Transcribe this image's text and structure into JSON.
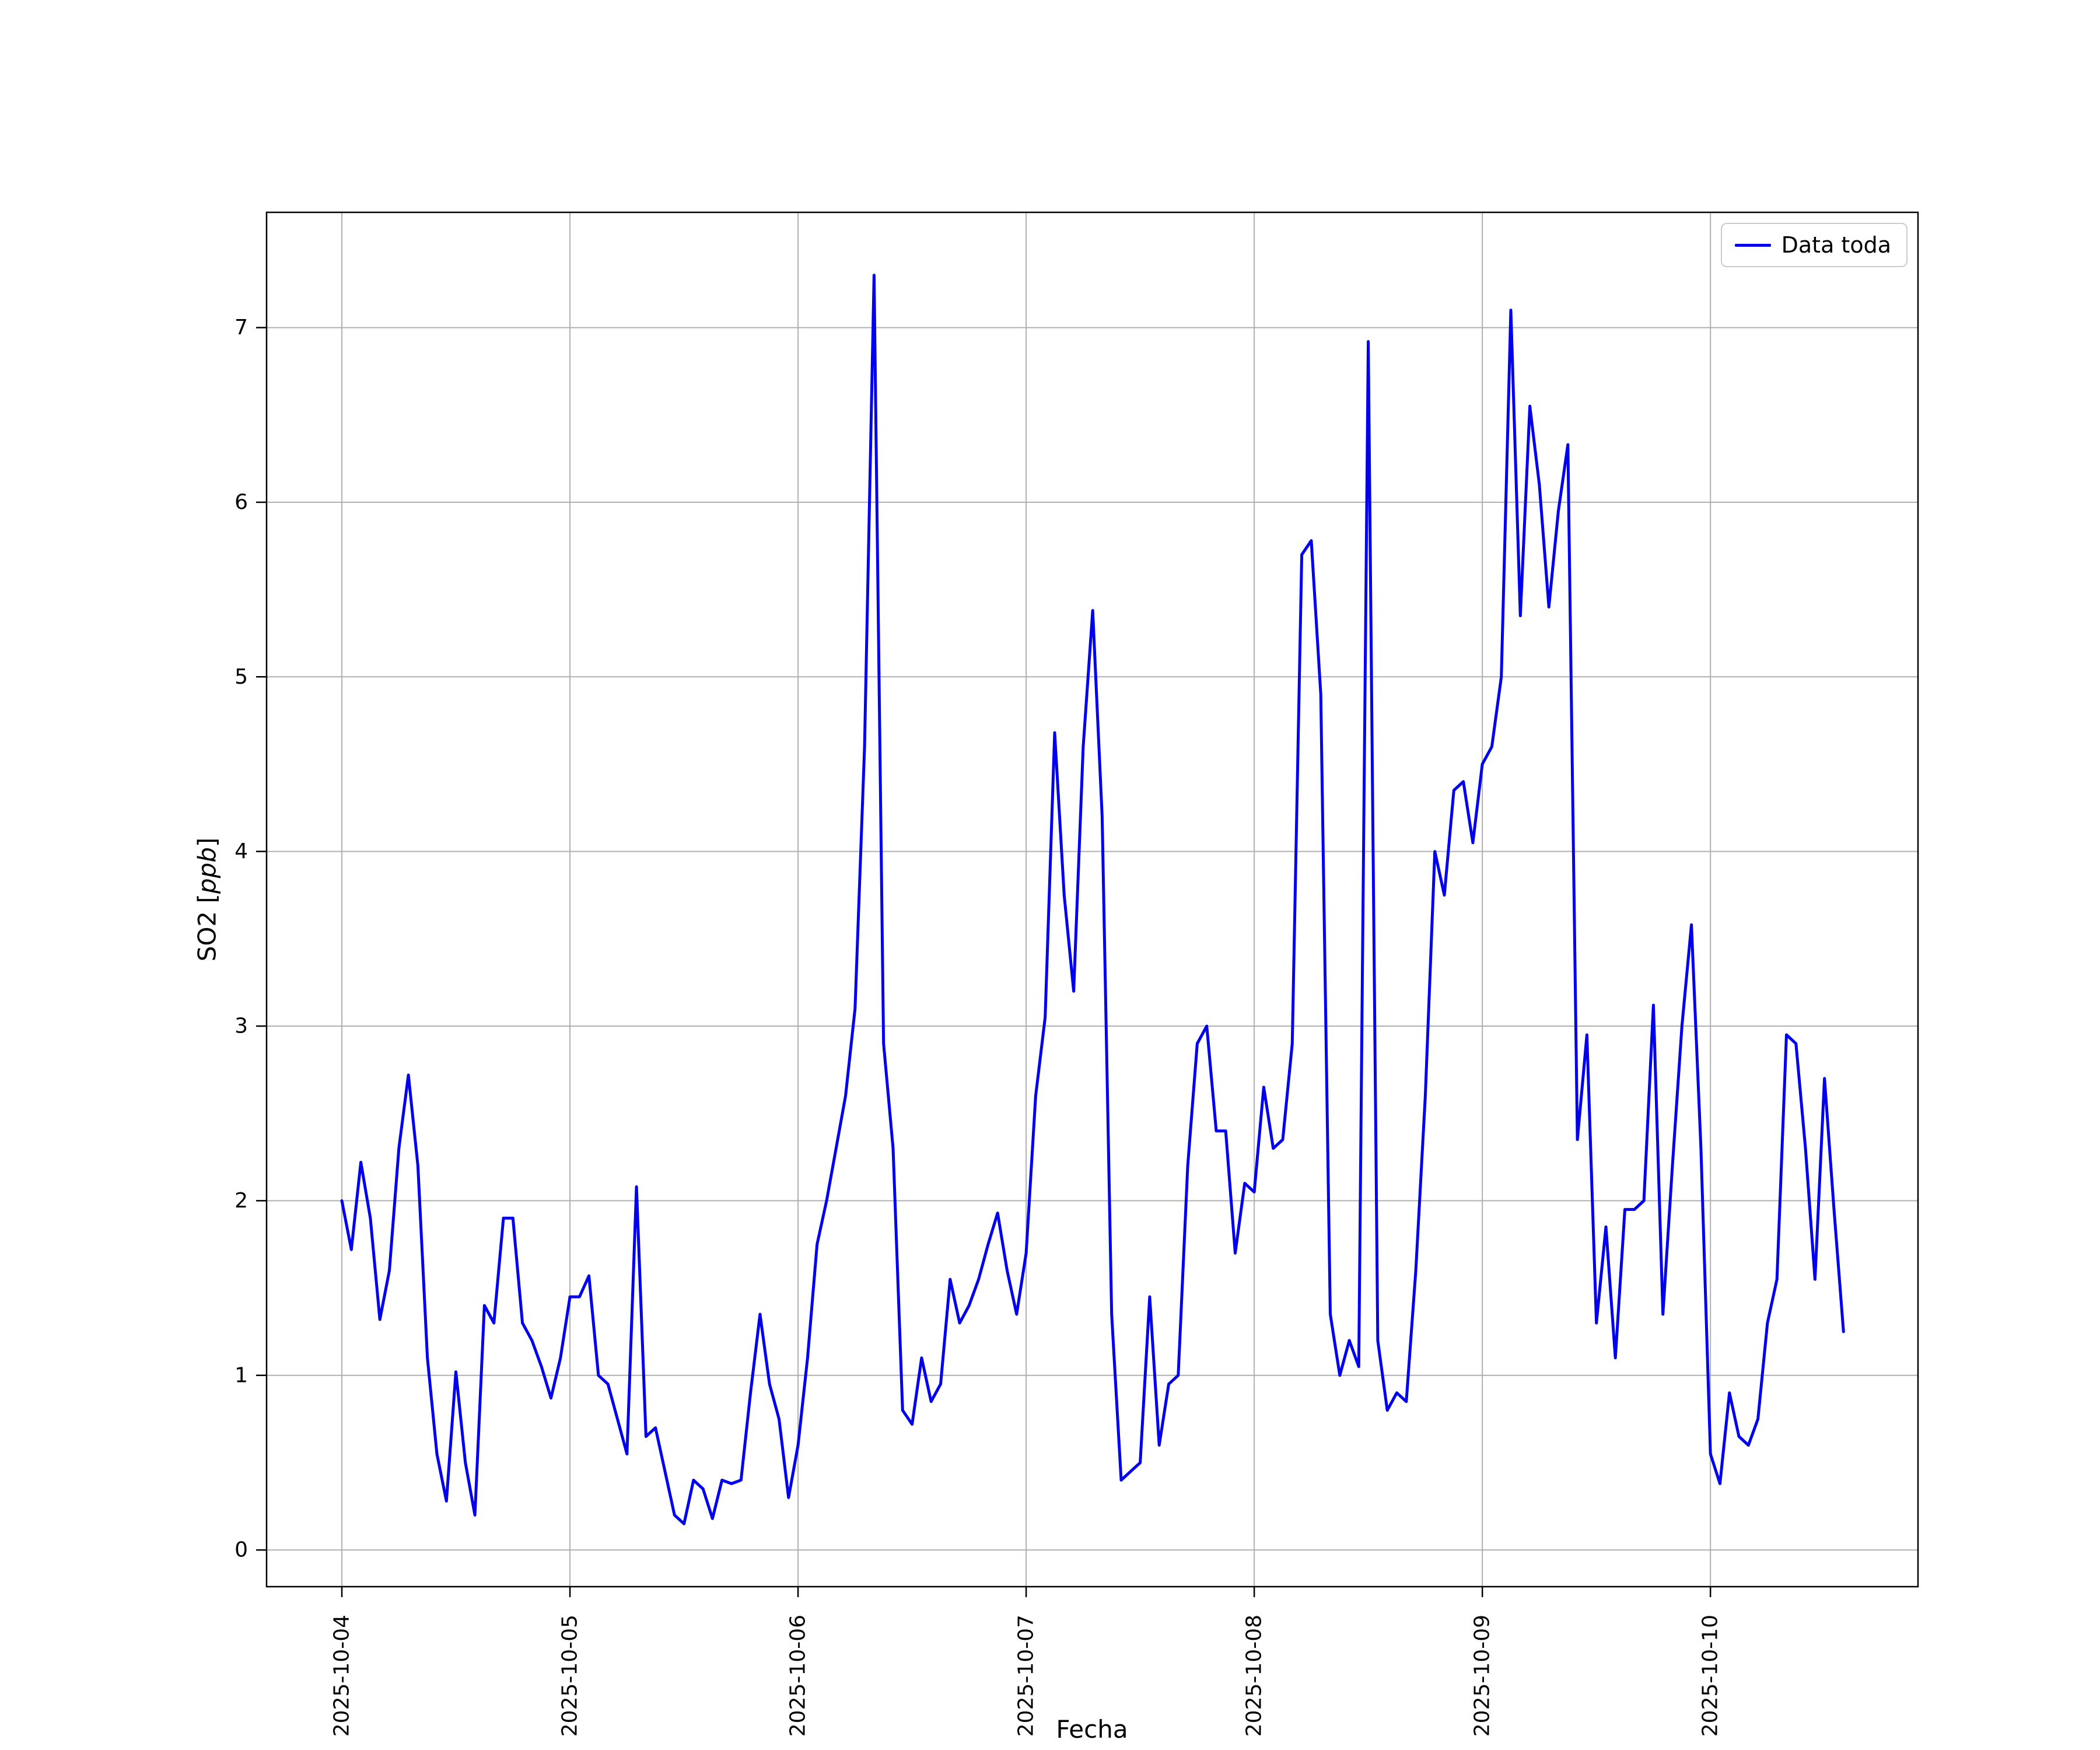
{
  "figure": {
    "background_color": "#ffffff"
  },
  "chart_data": {
    "type": "line",
    "title": "",
    "xlabel": "Fecha",
    "ylabel": {
      "prefix": "SO2 [",
      "italic": "ppb",
      "suffix": "]",
      "full": "SO2 [ppb]"
    },
    "legend": {
      "position": "upper right",
      "entries": [
        {
          "label": "Data toda",
          "color": "#0000ee"
        }
      ]
    },
    "grid": {
      "visible": true,
      "color": "#b0b0b0"
    },
    "axes": {
      "edge_color": "#000000",
      "tick_color": "#000000",
      "x_tick_labels": [
        "2025-10-04",
        "2025-10-05",
        "2025-10-06",
        "2025-10-07",
        "2025-10-08",
        "2025-10-09",
        "2025-10-10"
      ],
      "x_tick_days": [
        0,
        1,
        2,
        3,
        4,
        5,
        6
      ],
      "y_ticks": [
        0,
        1,
        2,
        3,
        4,
        5,
        6,
        7
      ],
      "xlim_days_from_first_tick": [
        -0.33,
        6.91
      ],
      "ylim": [
        -0.21,
        7.66
      ]
    },
    "series": [
      {
        "name": "Data toda",
        "color": "#0000ee",
        "x_start": "2025-10-04 00:00",
        "x_step_hours": 1,
        "values": [
          2.0,
          1.72,
          2.22,
          1.9,
          1.32,
          1.6,
          2.3,
          2.72,
          2.2,
          1.1,
          0.55,
          0.28,
          1.02,
          0.5,
          0.2,
          1.4,
          1.3,
          1.9,
          1.9,
          1.3,
          1.2,
          1.05,
          0.87,
          1.1,
          1.45,
          1.45,
          1.57,
          1.0,
          0.95,
          0.75,
          0.55,
          2.08,
          0.65,
          0.7,
          0.45,
          0.2,
          0.15,
          0.4,
          0.35,
          0.18,
          0.4,
          0.38,
          0.4,
          0.9,
          1.35,
          0.95,
          0.75,
          0.3,
          0.6,
          1.1,
          1.75,
          2.0,
          2.3,
          2.6,
          3.1,
          4.6,
          7.3,
          2.9,
          2.3,
          0.8,
          0.72,
          1.1,
          0.85,
          0.95,
          1.55,
          1.3,
          1.4,
          1.55,
          1.75,
          1.93,
          1.6,
          1.35,
          1.7,
          2.6,
          3.05,
          4.68,
          3.75,
          3.2,
          4.6,
          5.38,
          4.2,
          1.35,
          0.4,
          0.45,
          0.5,
          1.45,
          0.6,
          0.95,
          1.0,
          2.2,
          2.9,
          3.0,
          2.4,
          2.4,
          1.7,
          2.1,
          2.05,
          2.65,
          2.3,
          2.35,
          2.9,
          5.7,
          5.78,
          4.9,
          1.35,
          1.0,
          1.2,
          1.05,
          6.92,
          1.2,
          0.8,
          0.9,
          0.85,
          1.6,
          2.6,
          4.0,
          3.75,
          4.35,
          4.4,
          4.05,
          4.5,
          4.6,
          5.0,
          7.1,
          5.35,
          6.55,
          6.1,
          5.4,
          5.95,
          6.33,
          2.35,
          2.95,
          1.3,
          1.85,
          1.1,
          1.95,
          1.95,
          2.0,
          3.12,
          1.35,
          2.2,
          3.0,
          3.58,
          2.3,
          0.55,
          0.38,
          0.9,
          0.65,
          0.6,
          0.75,
          1.3,
          1.55,
          2.95,
          2.9,
          2.3,
          1.55,
          2.7,
          1.95,
          1.25
        ]
      }
    ]
  }
}
